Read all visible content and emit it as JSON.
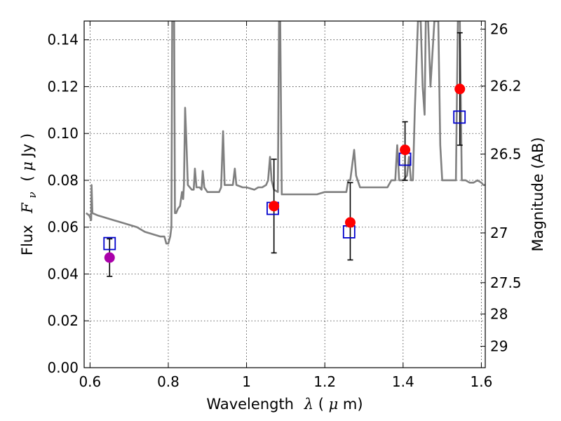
{
  "chart_data": {
    "type": "scatter",
    "title": "",
    "xlabel": {
      "prefix": "Wavelength",
      "symbol": "λ",
      "unit_open": " (",
      "unit_mu": "μ",
      "unit_rest": "m)"
    },
    "ylabel": {
      "prefix": "Flux",
      "symbol_main": "F",
      "symbol_sub": "ν",
      "unit_open": "( ",
      "unit_mu": "μ",
      "unit_rest": "Jy )"
    },
    "y2label": "Magnitude (AB)",
    "xlim": [
      0.585,
      1.61
    ],
    "ylim": [
      0.0,
      0.148
    ],
    "grid": true,
    "x_ticks": [
      0.6,
      0.8,
      1.0,
      1.2,
      1.4,
      1.6
    ],
    "x_tick_labels": [
      "0.6",
      "0.8",
      "1",
      "1.2",
      "1.4",
      "1.6"
    ],
    "y_ticks": [
      0.0,
      0.02,
      0.04,
      0.06,
      0.08,
      0.1,
      0.12,
      0.14
    ],
    "y_tick_labels": [
      "0.00",
      "0.02",
      "0.04",
      "0.06",
      "0.08",
      "0.10",
      "0.12",
      "0.14"
    ],
    "y2_ticks": [
      {
        "mag": 26,
        "label": "26"
      },
      {
        "mag": 26.2,
        "label": "26.2"
      },
      {
        "mag": 26.5,
        "label": "26.5"
      },
      {
        "mag": 27,
        "label": "27"
      },
      {
        "mag": 27.5,
        "label": "27.5"
      },
      {
        "mag": 28,
        "label": "28"
      },
      {
        "mag": 29,
        "label": "29"
      }
    ],
    "colors": {
      "template": "#808080",
      "detection": "#ff0000",
      "optical": "#aa00aa",
      "model": "#0000cc",
      "errorbar": "#000000"
    },
    "template_spectrum": [
      [
        0.59,
        0.066
      ],
      [
        0.598,
        0.065
      ],
      [
        0.603,
        0.063
      ],
      [
        0.604,
        0.078
      ],
      [
        0.606,
        0.066
      ],
      [
        0.62,
        0.065
      ],
      [
        0.64,
        0.064
      ],
      [
        0.66,
        0.063
      ],
      [
        0.68,
        0.062
      ],
      [
        0.7,
        0.061
      ],
      [
        0.72,
        0.06
      ],
      [
        0.74,
        0.058
      ],
      [
        0.76,
        0.057
      ],
      [
        0.78,
        0.056
      ],
      [
        0.79,
        0.056
      ],
      [
        0.795,
        0.053
      ],
      [
        0.8,
        0.053
      ],
      [
        0.805,
        0.056
      ],
      [
        0.808,
        0.06
      ],
      [
        0.81,
        0.148
      ],
      [
        0.815,
        0.148
      ],
      [
        0.817,
        0.066
      ],
      [
        0.82,
        0.066
      ],
      [
        0.825,
        0.068
      ],
      [
        0.83,
        0.069
      ],
      [
        0.835,
        0.075
      ],
      [
        0.838,
        0.072
      ],
      [
        0.84,
        0.078
      ],
      [
        0.843,
        0.111
      ],
      [
        0.846,
        0.098
      ],
      [
        0.85,
        0.078
      ],
      [
        0.86,
        0.076
      ],
      [
        0.865,
        0.076
      ],
      [
        0.868,
        0.085
      ],
      [
        0.872,
        0.077
      ],
      [
        0.88,
        0.077
      ],
      [
        0.885,
        0.076
      ],
      [
        0.888,
        0.084
      ],
      [
        0.892,
        0.077
      ],
      [
        0.9,
        0.075
      ],
      [
        0.91,
        0.075
      ],
      [
        0.92,
        0.075
      ],
      [
        0.93,
        0.075
      ],
      [
        0.935,
        0.077
      ],
      [
        0.94,
        0.101
      ],
      [
        0.944,
        0.078
      ],
      [
        0.95,
        0.078
      ],
      [
        0.96,
        0.078
      ],
      [
        0.965,
        0.078
      ],
      [
        0.97,
        0.085
      ],
      [
        0.974,
        0.078
      ],
      [
        0.99,
        0.077
      ],
      [
        1.0,
        0.077
      ],
      [
        1.02,
        0.076
      ],
      [
        1.03,
        0.077
      ],
      [
        1.04,
        0.077
      ],
      [
        1.05,
        0.078
      ],
      [
        1.055,
        0.08
      ],
      [
        1.06,
        0.09
      ],
      [
        1.064,
        0.08
      ],
      [
        1.07,
        0.076
      ],
      [
        1.08,
        0.075
      ],
      [
        1.083,
        0.148
      ],
      [
        1.086,
        0.148
      ],
      [
        1.09,
        0.074
      ],
      [
        1.1,
        0.074
      ],
      [
        1.12,
        0.074
      ],
      [
        1.14,
        0.074
      ],
      [
        1.16,
        0.074
      ],
      [
        1.18,
        0.074
      ],
      [
        1.2,
        0.075
      ],
      [
        1.22,
        0.075
      ],
      [
        1.24,
        0.075
      ],
      [
        1.255,
        0.075
      ],
      [
        1.26,
        0.08
      ],
      [
        1.265,
        0.08
      ],
      [
        1.275,
        0.093
      ],
      [
        1.28,
        0.082
      ],
      [
        1.29,
        0.077
      ],
      [
        1.3,
        0.077
      ],
      [
        1.32,
        0.077
      ],
      [
        1.34,
        0.077
      ],
      [
        1.36,
        0.077
      ],
      [
        1.37,
        0.08
      ],
      [
        1.38,
        0.08
      ],
      [
        1.385,
        0.095
      ],
      [
        1.39,
        0.08
      ],
      [
        1.4,
        0.08
      ],
      [
        1.41,
        0.082
      ],
      [
        1.415,
        0.09
      ],
      [
        1.42,
        0.08
      ],
      [
        1.425,
        0.08
      ],
      [
        1.43,
        0.11
      ],
      [
        1.438,
        0.148
      ],
      [
        1.445,
        0.148
      ],
      [
        1.45,
        0.12
      ],
      [
        1.455,
        0.108
      ],
      [
        1.458,
        0.148
      ],
      [
        1.464,
        0.148
      ],
      [
        1.47,
        0.12
      ],
      [
        1.48,
        0.148
      ],
      [
        1.49,
        0.148
      ],
      [
        1.495,
        0.095
      ],
      [
        1.5,
        0.08
      ],
      [
        1.52,
        0.08
      ],
      [
        1.535,
        0.08
      ],
      [
        1.54,
        0.148
      ],
      [
        1.545,
        0.148
      ],
      [
        1.55,
        0.08
      ],
      [
        1.56,
        0.08
      ],
      [
        1.57,
        0.079
      ],
      [
        1.58,
        0.079
      ],
      [
        1.59,
        0.08
      ],
      [
        1.6,
        0.079
      ],
      [
        1.605,
        0.078
      ],
      [
        1.61,
        0.078
      ]
    ],
    "model_points": [
      {
        "x": 0.65,
        "y": 0.053
      },
      {
        "x": 1.067,
        "y": 0.068
      },
      {
        "x": 1.262,
        "y": 0.058
      },
      {
        "x": 1.405,
        "y": 0.089
      },
      {
        "x": 1.544,
        "y": 0.107
      }
    ],
    "observed_points": [
      {
        "x": 0.65,
        "y": 0.047,
        "yerr_low": 0.039,
        "yerr_high": 0.055,
        "kind": "optical"
      },
      {
        "x": 1.07,
        "y": 0.069,
        "yerr_low": 0.049,
        "yerr_high": 0.089,
        "kind": "detection"
      },
      {
        "x": 1.265,
        "y": 0.062,
        "yerr_low": 0.046,
        "yerr_high": 0.079,
        "kind": "detection"
      },
      {
        "x": 1.405,
        "y": 0.093,
        "yerr_low": 0.08,
        "yerr_high": 0.105,
        "kind": "detection"
      },
      {
        "x": 1.545,
        "y": 0.119,
        "yerr_low": 0.095,
        "yerr_high": 0.143,
        "kind": "detection"
      }
    ]
  }
}
